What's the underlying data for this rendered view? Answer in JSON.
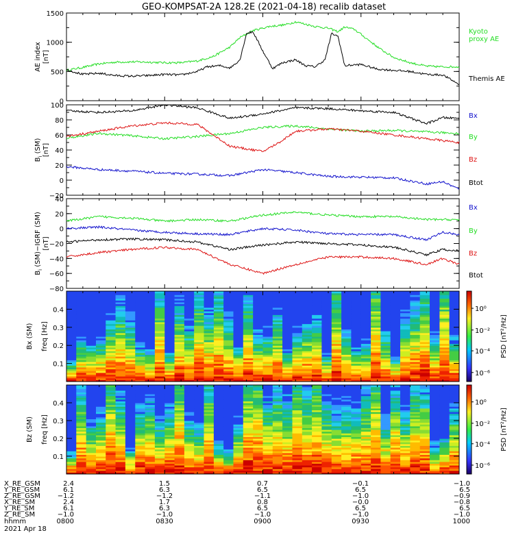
{
  "title": "GEO-KOMPSAT-2A 128.2E (2021-04-18) recalib dataset",
  "colors": {
    "black": "#000000",
    "green": "#22dd22",
    "red": "#dd1111",
    "blue": "#1111cc"
  },
  "chart_data": [
    {
      "type": "line",
      "panel": "ae",
      "ylabel": "AE index",
      "yunit": "[nT]",
      "ylim": [
        0,
        1500
      ],
      "yticks": [
        0,
        500,
        1000,
        1500
      ],
      "xlim": [
        "08:00",
        "10:00"
      ],
      "series": [
        {
          "name": "Kyoto proxy AE",
          "label_lines": [
            "Kyoto",
            "proxy AE"
          ],
          "color": "green",
          "points": [
            [
              0,
              520
            ],
            [
              5,
              570
            ],
            [
              10,
              630
            ],
            [
              15,
              660
            ],
            [
              20,
              665
            ],
            [
              25,
              660
            ],
            [
              30,
              650
            ],
            [
              35,
              650
            ],
            [
              40,
              680
            ],
            [
              45,
              760
            ],
            [
              50,
              920
            ],
            [
              53,
              1080
            ],
            [
              57,
              1200
            ],
            [
              62,
              1270
            ],
            [
              67,
              1300
            ],
            [
              70,
              1350
            ],
            [
              73,
              1310
            ],
            [
              76,
              1270
            ],
            [
              80,
              1240
            ],
            [
              83,
              1180
            ],
            [
              85,
              1260
            ],
            [
              88,
              1220
            ],
            [
              92,
              1050
            ],
            [
              96,
              880
            ],
            [
              100,
              740
            ],
            [
              105,
              650
            ],
            [
              110,
              590
            ],
            [
              115,
              580
            ],
            [
              120,
              580
            ]
          ]
        },
        {
          "name": "Themis AE",
          "color": "black",
          "points": [
            [
              0,
              530
            ],
            [
              5,
              450
            ],
            [
              10,
              470
            ],
            [
              15,
              430
            ],
            [
              20,
              420
            ],
            [
              25,
              430
            ],
            [
              30,
              450
            ],
            [
              35,
              440
            ],
            [
              40,
              500
            ],
            [
              43,
              580
            ],
            [
              47,
              600
            ],
            [
              50,
              560
            ],
            [
              53,
              700
            ],
            [
              55,
              1150
            ],
            [
              57,
              1180
            ],
            [
              60,
              850
            ],
            [
              63,
              550
            ],
            [
              66,
              650
            ],
            [
              70,
              700
            ],
            [
              73,
              600
            ],
            [
              76,
              580
            ],
            [
              79,
              700
            ],
            [
              81,
              1150
            ],
            [
              83,
              1100
            ],
            [
              85,
              600
            ],
            [
              90,
              620
            ],
            [
              95,
              540
            ],
            [
              100,
              520
            ],
            [
              105,
              500
            ],
            [
              110,
              450
            ],
            [
              115,
              440
            ],
            [
              120,
              280
            ]
          ]
        }
      ]
    },
    {
      "type": "line",
      "panel": "b",
      "ylabel": "B (SM)",
      "ylabel_sub": "i",
      "yunit": "[nT]",
      "ylim": [
        -20,
        100
      ],
      "yticks": [
        -20,
        0,
        20,
        40,
        60,
        80,
        100
      ],
      "series": [
        {
          "name": "Bx",
          "color": "blue",
          "points": [
            [
              0,
              18
            ],
            [
              10,
              14
            ],
            [
              20,
              12
            ],
            [
              30,
              9
            ],
            [
              40,
              8
            ],
            [
              50,
              6
            ],
            [
              60,
              14
            ],
            [
              70,
              10
            ],
            [
              80,
              5
            ],
            [
              90,
              4
            ],
            [
              100,
              3
            ],
            [
              110,
              -5
            ],
            [
              115,
              -2
            ],
            [
              120,
              -12
            ]
          ]
        },
        {
          "name": "By",
          "color": "green",
          "points": [
            [
              0,
              56
            ],
            [
              10,
              62
            ],
            [
              20,
              59
            ],
            [
              30,
              55
            ],
            [
              40,
              58
            ],
            [
              50,
              62
            ],
            [
              60,
              70
            ],
            [
              70,
              72
            ],
            [
              80,
              68
            ],
            [
              90,
              65
            ],
            [
              100,
              66
            ],
            [
              110,
              64
            ],
            [
              120,
              62
            ]
          ]
        },
        {
          "name": "Bz",
          "color": "red",
          "points": [
            [
              0,
              58
            ],
            [
              10,
              65
            ],
            [
              20,
              72
            ],
            [
              30,
              76
            ],
            [
              40,
              74
            ],
            [
              50,
              45
            ],
            [
              60,
              38
            ],
            [
              65,
              50
            ],
            [
              70,
              65
            ],
            [
              80,
              68
            ],
            [
              90,
              65
            ],
            [
              100,
              60
            ],
            [
              110,
              55
            ],
            [
              120,
              50
            ]
          ]
        },
        {
          "name": "Btot",
          "color": "black",
          "points": [
            [
              0,
              92
            ],
            [
              10,
              90
            ],
            [
              20,
              92
            ],
            [
              30,
              100
            ],
            [
              40,
              96
            ],
            [
              50,
              82
            ],
            [
              60,
              88
            ],
            [
              70,
              96
            ],
            [
              80,
              95
            ],
            [
              90,
              92
            ],
            [
              100,
              90
            ],
            [
              110,
              75
            ],
            [
              115,
              83
            ],
            [
              120,
              82
            ]
          ]
        }
      ],
      "legend_order": [
        "Bx",
        "By",
        "Bz",
        "Btot"
      ]
    },
    {
      "type": "line",
      "panel": "db",
      "ylabel": "B (SM)−IGRF (SM)",
      "ylabel_sub": "i",
      "yunit": "[nT]",
      "ylim": [
        -80,
        40
      ],
      "yticks": [
        -80,
        -60,
        -40,
        -20,
        0,
        20,
        40
      ],
      "series": [
        {
          "name": "Bx",
          "color": "blue",
          "points": [
            [
              0,
              0
            ],
            [
              10,
              2
            ],
            [
              20,
              -2
            ],
            [
              30,
              -5
            ],
            [
              40,
              -7
            ],
            [
              50,
              -8
            ],
            [
              60,
              0
            ],
            [
              70,
              -2
            ],
            [
              80,
              -7
            ],
            [
              90,
              -8
            ],
            [
              100,
              -8
            ],
            [
              110,
              -15
            ],
            [
              115,
              -5
            ],
            [
              120,
              -8
            ]
          ]
        },
        {
          "name": "By",
          "color": "green",
          "points": [
            [
              0,
              10
            ],
            [
              10,
              16
            ],
            [
              20,
              14
            ],
            [
              30,
              10
            ],
            [
              40,
              12
            ],
            [
              50,
              10
            ],
            [
              60,
              18
            ],
            [
              70,
              22
            ],
            [
              80,
              18
            ],
            [
              90,
              16
            ],
            [
              100,
              16
            ],
            [
              110,
              12
            ],
            [
              120,
              12
            ]
          ]
        },
        {
          "name": "Bz",
          "color": "red",
          "points": [
            [
              0,
              -38
            ],
            [
              10,
              -32
            ],
            [
              20,
              -28
            ],
            [
              30,
              -25
            ],
            [
              40,
              -28
            ],
            [
              50,
              -48
            ],
            [
              60,
              -60
            ],
            [
              70,
              -48
            ],
            [
              80,
              -38
            ],
            [
              90,
              -38
            ],
            [
              100,
              -40
            ],
            [
              110,
              -48
            ],
            [
              115,
              -40
            ],
            [
              120,
              -48
            ]
          ]
        },
        {
          "name": "Btot",
          "color": "black",
          "points": [
            [
              0,
              -18
            ],
            [
              10,
              -15
            ],
            [
              20,
              -14
            ],
            [
              30,
              -15
            ],
            [
              40,
              -18
            ],
            [
              50,
              -28
            ],
            [
              60,
              -22
            ],
            [
              70,
              -18
            ],
            [
              80,
              -20
            ],
            [
              90,
              -22
            ],
            [
              100,
              -25
            ],
            [
              110,
              -35
            ],
            [
              115,
              -28
            ],
            [
              120,
              -30
            ]
          ]
        }
      ],
      "legend_order": [
        "Bx",
        "By",
        "Bz",
        "Btot"
      ]
    },
    {
      "type": "heatmap",
      "panel": "spec_bx",
      "ylabel": "Bx (SM)",
      "ylabel2": "freq  [Hz]",
      "ylim": [
        0.0,
        0.5
      ],
      "yticks": [
        0.1,
        0.2,
        0.3,
        0.4
      ],
      "cbar_label": "PSD  [nT²/Hz]",
      "cbar_ticks": [
        "10⁰",
        "10⁻²",
        "10⁻⁴",
        "10⁻⁶"
      ]
    },
    {
      "type": "heatmap",
      "panel": "spec_bz",
      "ylabel": "Bz (SM)",
      "ylabel2": "freq  [Hz]",
      "ylim": [
        0.0,
        0.5
      ],
      "yticks": [
        0.1,
        0.2,
        0.3,
        0.4
      ],
      "cbar_label": "PSD  [nT²/Hz]",
      "cbar_ticks": [
        "10⁰",
        "10⁻²",
        "10⁻⁴",
        "10⁻⁶"
      ]
    }
  ],
  "ephemeris": {
    "labels": [
      "X_RE_GSM",
      "Y_RE_GSM",
      "Z_RE_GSM",
      "X_RE_SM",
      "Y_RE_SM",
      "Z_RE_SM",
      "hhmm"
    ],
    "columns": [
      [
        "2.4",
        "6.1",
        "−1.2",
        "2.4",
        "6.1",
        "−1.0",
        "0800"
      ],
      [
        "1.5",
        "6.3",
        "−1.2",
        "1.7",
        "6.3",
        "−1.0",
        "0830"
      ],
      [
        "0.7",
        "6.5",
        "−1.1",
        "0.8",
        "6.5",
        "−1.0",
        "0900"
      ],
      [
        "−0.1",
        "6.5",
        "−1.0",
        "−0.0",
        "6.5",
        "−1.0",
        "0930"
      ],
      [
        "−1.0",
        "6.5",
        "−0.9",
        "−0.8",
        "6.5",
        "−1.0",
        "1000"
      ]
    ],
    "date": "2021 Apr 18"
  }
}
